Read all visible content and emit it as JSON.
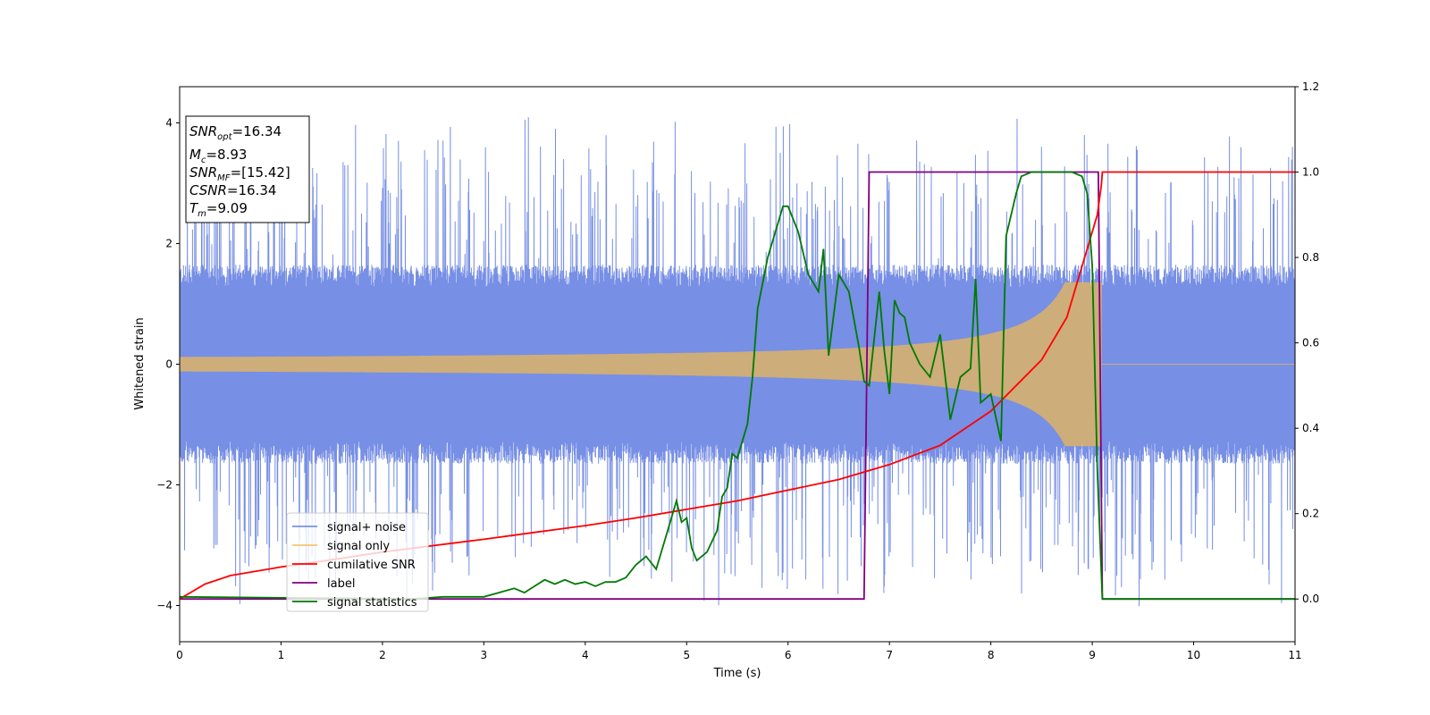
{
  "chart_data": {
    "type": "line",
    "title": "",
    "xlabel": "Time (s)",
    "ylabel": "Whitened strain",
    "y2label": "",
    "xlim": [
      0,
      11
    ],
    "ylim": [
      -4.6,
      4.6
    ],
    "y2lim": [
      -0.1,
      1.2
    ],
    "x_ticks": [
      0,
      1,
      2,
      3,
      4,
      5,
      6,
      7,
      8,
      9,
      10,
      11
    ],
    "y_ticks": [
      -4,
      -2,
      0,
      2,
      4
    ],
    "y2_ticks": [
      "0.0",
      "0.2",
      "0.4",
      "0.6",
      "0.8",
      "1.0",
      "1.2"
    ],
    "grid": false,
    "legend_position": "lower-left",
    "colors": {
      "signal_noise": "#6b86e3",
      "signal_only": "#f2b94b",
      "cumulative_snr": "#ff0000",
      "label": "#800080",
      "signal_statistics": "#007a00"
    },
    "series": [
      {
        "name": "signal+ noise",
        "axis": "left",
        "kind": "noise",
        "amplitude_band": [
          -1.5,
          1.5
        ],
        "peaks_range": [
          -4.1,
          4.2
        ]
      },
      {
        "name": "signal only",
        "axis": "left",
        "kind": "chirp",
        "amplitude_start": 0.06,
        "amplitude_end": 1.3,
        "merger_time": 9.09
      },
      {
        "name": "cumilative SNR",
        "axis": "right",
        "x": [
          0,
          0.25,
          0.5,
          1,
          1.5,
          2,
          2.5,
          3,
          3.5,
          4,
          4.5,
          5,
          5.5,
          6,
          6.5,
          7,
          7.5,
          8,
          8.5,
          8.75,
          9,
          9.05,
          9.09,
          9.1,
          9.15,
          11
        ],
        "y": [
          0.0,
          0.035,
          0.055,
          0.075,
          0.092,
          0.11,
          0.125,
          0.14,
          0.156,
          0.172,
          0.19,
          0.21,
          0.23,
          0.255,
          0.28,
          0.315,
          0.36,
          0.44,
          0.56,
          0.66,
          0.86,
          0.9,
          0.97,
          1.0,
          1.0,
          1.0
        ]
      },
      {
        "name": "label",
        "axis": "right",
        "x": [
          0,
          6.75,
          6.8,
          9.06,
          9.1,
          11
        ],
        "y": [
          0,
          0,
          1,
          1,
          0,
          0
        ]
      },
      {
        "name": "signal statistics",
        "axis": "right",
        "x": [
          0,
          2.3,
          2.6,
          3.0,
          3.3,
          3.4,
          3.5,
          3.6,
          3.7,
          3.8,
          3.9,
          4.0,
          4.1,
          4.2,
          4.3,
          4.4,
          4.5,
          4.6,
          4.7,
          4.8,
          4.9,
          4.95,
          5.0,
          5.05,
          5.1,
          5.2,
          5.3,
          5.35,
          5.4,
          5.45,
          5.5,
          5.6,
          5.65,
          5.7,
          5.8,
          5.9,
          5.95,
          6.0,
          6.1,
          6.2,
          6.25,
          6.3,
          6.35,
          6.4,
          6.5,
          6.6,
          6.7,
          6.75,
          6.8,
          6.9,
          6.95,
          7.0,
          7.05,
          7.1,
          7.15,
          7.2,
          7.3,
          7.4,
          7.5,
          7.6,
          7.7,
          7.8,
          7.85,
          7.9,
          8.0,
          8.1,
          8.15,
          8.25,
          8.3,
          8.4,
          8.5,
          8.6,
          8.7,
          8.8,
          8.9,
          8.95,
          9.0,
          9.05,
          9.1,
          9.15,
          11
        ],
        "y": [
          0.005,
          0.0,
          0.005,
          0.005,
          0.025,
          0.015,
          0.03,
          0.045,
          0.035,
          0.045,
          0.035,
          0.04,
          0.03,
          0.04,
          0.04,
          0.05,
          0.08,
          0.1,
          0.07,
          0.15,
          0.23,
          0.18,
          0.19,
          0.12,
          0.09,
          0.11,
          0.16,
          0.24,
          0.26,
          0.34,
          0.33,
          0.41,
          0.52,
          0.68,
          0.8,
          0.88,
          0.92,
          0.92,
          0.86,
          0.76,
          0.74,
          0.72,
          0.82,
          0.57,
          0.76,
          0.72,
          0.59,
          0.51,
          0.5,
          0.72,
          0.58,
          0.48,
          0.7,
          0.67,
          0.66,
          0.6,
          0.55,
          0.52,
          0.62,
          0.42,
          0.52,
          0.54,
          0.75,
          0.46,
          0.48,
          0.37,
          0.85,
          0.95,
          0.99,
          1.0,
          1.0,
          1.0,
          1.0,
          1.0,
          0.99,
          0.95,
          0.78,
          0.3,
          0.0,
          0.0,
          0.0
        ]
      }
    ],
    "annotations": {
      "snr_opt": "16.34",
      "mc": "8.93",
      "snr_mf": "[15.42]",
      "csnr": "16.34",
      "tm": "9.09"
    }
  }
}
